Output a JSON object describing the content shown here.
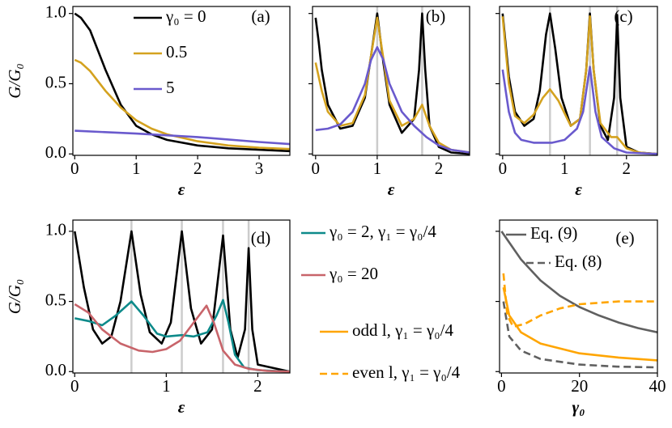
{
  "chart_data": [
    {
      "type": "line",
      "label": "(a)",
      "xlabel": "ε",
      "ylabel": "G/G₀",
      "xlim": [
        -0.03,
        3.5
      ],
      "ylim": [
        -0.01,
        1.05
      ],
      "xticks": [
        0,
        1,
        2,
        3
      ],
      "yticks": [
        {
          "value": 0,
          "label": "0.0"
        },
        {
          "value": 0.5,
          "label": "0.5"
        },
        {
          "value": 1,
          "label": "1.0"
        }
      ],
      "vlines": [],
      "series": [
        {
          "name": "γ₀ = 0",
          "color": "#000000",
          "x": [
            0,
            0.1,
            0.25,
            0.5,
            0.75,
            1,
            1.25,
            1.5,
            2,
            2.5,
            3,
            3.5
          ],
          "values": [
            1.0,
            0.97,
            0.88,
            0.6,
            0.35,
            0.2,
            0.14,
            0.1,
            0.06,
            0.04,
            0.03,
            0.02
          ]
        },
        {
          "name": "0.5",
          "color": "#d4a21f",
          "x": [
            0,
            0.1,
            0.25,
            0.5,
            0.75,
            1,
            1.25,
            1.5,
            2,
            2.5,
            3,
            3.5
          ],
          "values": [
            0.67,
            0.65,
            0.59,
            0.45,
            0.33,
            0.24,
            0.18,
            0.14,
            0.09,
            0.06,
            0.045,
            0.035
          ]
        },
        {
          "name": "5",
          "color": "#6a5acd",
          "x": [
            0,
            1,
            2,
            3,
            3.5
          ],
          "values": [
            0.165,
            0.145,
            0.12,
            0.085,
            0.07
          ]
        }
      ]
    },
    {
      "type": "line",
      "label": "(b)",
      "xlabel": "ε",
      "show_ytick_labels": false,
      "xlim": [
        -0.05,
        2.5
      ],
      "ylim": [
        -0.01,
        1.05
      ],
      "xticks": [
        0,
        1,
        2
      ],
      "yticks": [
        0,
        0.5,
        1
      ],
      "vlines": [
        1,
        1.73
      ],
      "series": [
        {
          "color": "#000000",
          "x": [
            0,
            0.05,
            0.1,
            0.2,
            0.4,
            0.6,
            0.8,
            0.9,
            1.0,
            1.1,
            1.2,
            1.4,
            1.6,
            1.68,
            1.73,
            1.78,
            1.85,
            2.0,
            2.2,
            2.5
          ],
          "values": [
            0.97,
            0.8,
            0.6,
            0.35,
            0.18,
            0.2,
            0.4,
            0.7,
            1.0,
            0.65,
            0.35,
            0.15,
            0.25,
            0.6,
            1.0,
            0.6,
            0.2,
            0.05,
            0.01,
            0
          ]
        },
        {
          "color": "#d4a21f",
          "x": [
            0,
            0.1,
            0.2,
            0.4,
            0.6,
            0.8,
            0.9,
            1.0,
            1.1,
            1.2,
            1.4,
            1.6,
            1.73,
            1.85,
            2.0,
            2.2,
            2.5
          ],
          "values": [
            0.65,
            0.45,
            0.3,
            0.2,
            0.22,
            0.42,
            0.7,
            0.97,
            0.68,
            0.38,
            0.2,
            0.25,
            0.35,
            0.2,
            0.08,
            0.03,
            0.01
          ]
        },
        {
          "color": "#6a5acd",
          "x": [
            0,
            0.2,
            0.4,
            0.6,
            0.8,
            0.9,
            1.0,
            1.1,
            1.2,
            1.4,
            1.6,
            1.8,
            2.0,
            2.2,
            2.5
          ],
          "values": [
            0.17,
            0.18,
            0.21,
            0.3,
            0.5,
            0.67,
            0.76,
            0.67,
            0.5,
            0.3,
            0.2,
            0.12,
            0.06,
            0.03,
            0.01
          ]
        }
      ]
    },
    {
      "type": "line",
      "label": "(c)",
      "xlabel": "ε",
      "show_ytick_labels": false,
      "xlim": [
        -0.05,
        2.5
      ],
      "ylim": [
        -0.01,
        1.05
      ],
      "xticks": [
        0,
        1,
        2
      ],
      "yticks": [
        0,
        0.5,
        1
      ],
      "vlines": [
        0.765,
        1.41,
        1.85
      ],
      "series": [
        {
          "color": "#000000",
          "x": [
            0,
            0.1,
            0.2,
            0.35,
            0.5,
            0.6,
            0.7,
            0.765,
            0.85,
            0.95,
            1.1,
            1.25,
            1.35,
            1.41,
            1.47,
            1.58,
            1.7,
            1.8,
            1.85,
            1.9,
            2.0,
            2.2,
            2.5
          ],
          "values": [
            1.0,
            0.55,
            0.3,
            0.2,
            0.25,
            0.45,
            0.85,
            1.0,
            0.75,
            0.4,
            0.2,
            0.25,
            0.6,
            1.0,
            0.6,
            0.2,
            0.1,
            0.4,
            0.99,
            0.4,
            0.05,
            0.01,
            0
          ]
        },
        {
          "color": "#d4a21f",
          "x": [
            0,
            0.1,
            0.2,
            0.35,
            0.5,
            0.65,
            0.765,
            0.9,
            1.1,
            1.25,
            1.35,
            1.41,
            1.47,
            1.58,
            1.75,
            1.85,
            2.0,
            2.2,
            2.5
          ],
          "values": [
            0.98,
            0.5,
            0.27,
            0.22,
            0.28,
            0.4,
            0.46,
            0.38,
            0.2,
            0.25,
            0.6,
            0.98,
            0.6,
            0.22,
            0.12,
            0.12,
            0.04,
            0.01,
            0
          ]
        },
        {
          "color": "#6a5acd",
          "x": [
            0,
            0.05,
            0.1,
            0.2,
            0.3,
            0.5,
            0.8,
            1.0,
            1.2,
            1.3,
            1.41,
            1.5,
            1.6,
            1.8,
            2.0,
            2.5
          ],
          "values": [
            0.6,
            0.45,
            0.3,
            0.15,
            0.1,
            0.08,
            0.08,
            0.1,
            0.18,
            0.3,
            0.62,
            0.3,
            0.12,
            0.04,
            0.01,
            0
          ]
        }
      ]
    },
    {
      "type": "line",
      "label": "(d)",
      "xlabel": "ε",
      "ylabel": "G/G₀",
      "xlim": [
        -0.02,
        2.35
      ],
      "ylim": [
        -0.01,
        1.08
      ],
      "xticks": [
        0,
        1,
        2
      ],
      "yticks": [
        {
          "value": 0,
          "label": "0.0"
        },
        {
          "value": 0.5,
          "label": "0.5"
        },
        {
          "value": 1,
          "label": "1.0"
        }
      ],
      "vlines": [
        0.62,
        1.17,
        1.62,
        1.9
      ],
      "series": [
        {
          "color": "#000000",
          "x": [
            0,
            0.1,
            0.2,
            0.3,
            0.4,
            0.5,
            0.62,
            0.72,
            0.82,
            0.95,
            1.05,
            1.17,
            1.27,
            1.38,
            1.5,
            1.62,
            1.7,
            1.78,
            1.86,
            1.9,
            1.94,
            2.0,
            2.35
          ],
          "values": [
            1.0,
            0.6,
            0.3,
            0.2,
            0.25,
            0.5,
            1.0,
            0.55,
            0.28,
            0.2,
            0.35,
            1.0,
            0.45,
            0.2,
            0.3,
            0.97,
            0.3,
            0.1,
            0.3,
            0.88,
            0.3,
            0.05,
            0
          ]
        },
        {
          "name": "γ₀ = 2, γ₁ = γ₀/4",
          "color": "#0d8a8a",
          "x": [
            0,
            0.15,
            0.3,
            0.45,
            0.62,
            0.75,
            0.9,
            1.0,
            1.17,
            1.3,
            1.45,
            1.55,
            1.62,
            1.68,
            1.75,
            1.85,
            2.0,
            2.35
          ],
          "values": [
            0.38,
            0.36,
            0.33,
            0.4,
            0.5,
            0.4,
            0.27,
            0.25,
            0.26,
            0.25,
            0.28,
            0.4,
            0.51,
            0.35,
            0.12,
            0.03,
            0.01,
            0
          ]
        },
        {
          "name": "γ₀ = 20",
          "color": "#c8646a",
          "x": [
            0,
            0.15,
            0.3,
            0.5,
            0.7,
            0.85,
            1.0,
            1.15,
            1.3,
            1.44,
            1.52,
            1.62,
            1.75,
            1.9,
            2.1,
            2.35
          ],
          "values": [
            0.48,
            0.42,
            0.3,
            0.2,
            0.15,
            0.14,
            0.16,
            0.22,
            0.35,
            0.47,
            0.35,
            0.15,
            0.05,
            0.02,
            0.005,
            0
          ]
        }
      ]
    },
    {
      "type": "line",
      "label": "(e)",
      "xlabel": "γ₀",
      "show_ytick_labels": false,
      "xlim": [
        -0.5,
        40
      ],
      "ylim": [
        -0.01,
        1.08
      ],
      "xticks": [
        0,
        20,
        40
      ],
      "yticks": [
        0,
        0.5,
        1
      ],
      "vlines": [],
      "series": [
        {
          "name": "Eq. (9)",
          "color": "#606060",
          "dashed": false,
          "x": [
            0,
            5,
            10,
            15,
            20,
            25,
            30,
            35,
            40
          ],
          "values": [
            1.0,
            0.8,
            0.65,
            0.54,
            0.46,
            0.4,
            0.35,
            0.31,
            0.28
          ]
        },
        {
          "name": "Eq. (8)",
          "color": "#606060",
          "dashed": true,
          "x": [
            0.5,
            2,
            5,
            10,
            20,
            30,
            40
          ],
          "values": [
            0.5,
            0.25,
            0.15,
            0.09,
            0.05,
            0.035,
            0.03
          ]
        },
        {
          "name": "odd l, γ₁ = γ₀/4",
          "color": "#ffa500",
          "dashed": false,
          "x": [
            0.5,
            2,
            5,
            10,
            20,
            30,
            40
          ],
          "values": [
            0.6,
            0.4,
            0.28,
            0.2,
            0.13,
            0.1,
            0.08
          ]
        },
        {
          "name": "even l, γ₁ = γ₀/4",
          "color": "#ffa500",
          "dashed": true,
          "x": [
            0.5,
            1.5,
            3,
            6,
            10,
            15,
            20,
            30,
            40
          ],
          "values": [
            0.7,
            0.4,
            0.32,
            0.34,
            0.4,
            0.45,
            0.48,
            0.5,
            0.5
          ]
        }
      ]
    }
  ]
}
